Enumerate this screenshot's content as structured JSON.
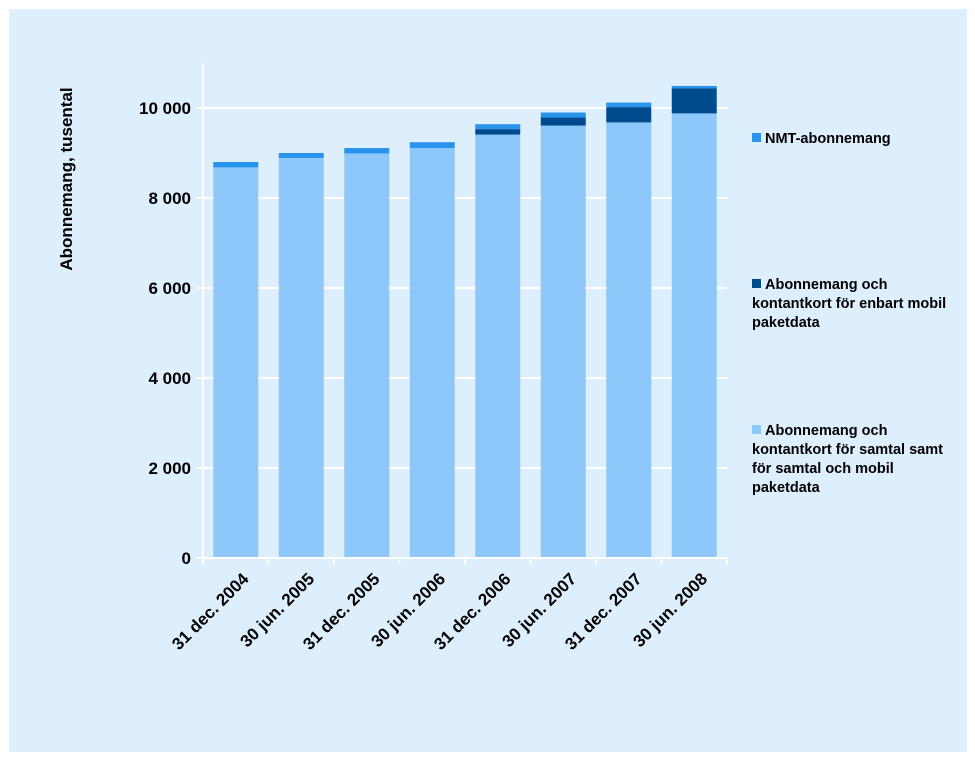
{
  "chart_data": {
    "type": "bar",
    "stacked": true,
    "title": "",
    "xlabel": "",
    "ylabel": "Abonnemang, tusental",
    "ylim": [
      0,
      11000
    ],
    "yticks": [
      0,
      2000,
      4000,
      6000,
      8000,
      10000
    ],
    "ytick_labels": [
      "0",
      "2 000",
      "4 000",
      "6 000",
      "8 000",
      "10 000"
    ],
    "grid": true,
    "legend_position": "right",
    "categories": [
      "31 dec. 2004",
      "30 jun. 2005",
      "31 dec. 2005",
      "30 jun. 2006",
      "31 dec. 2006",
      "30 jun. 2007",
      "31 dec. 2007",
      "30 jun. 2008"
    ],
    "series": [
      {
        "name": "Abonnemang och kontantkort för samtal samt för samtal och mobil paketdata",
        "color": "#8ec8fb",
        "values": [
          8680,
          8890,
          8990,
          9110,
          9410,
          9610,
          9680,
          9880
        ]
      },
      {
        "name": "Abonnemang och kontantkort för enbart mobil paketdata",
        "color": "#004b8d",
        "values": [
          0,
          0,
          0,
          0,
          120,
          180,
          340,
          560
        ]
      },
      {
        "name": "NMT-abonnemang",
        "color": "#2994ee",
        "values": [
          120,
          110,
          120,
          130,
          110,
          110,
          100,
          50
        ]
      }
    ]
  }
}
